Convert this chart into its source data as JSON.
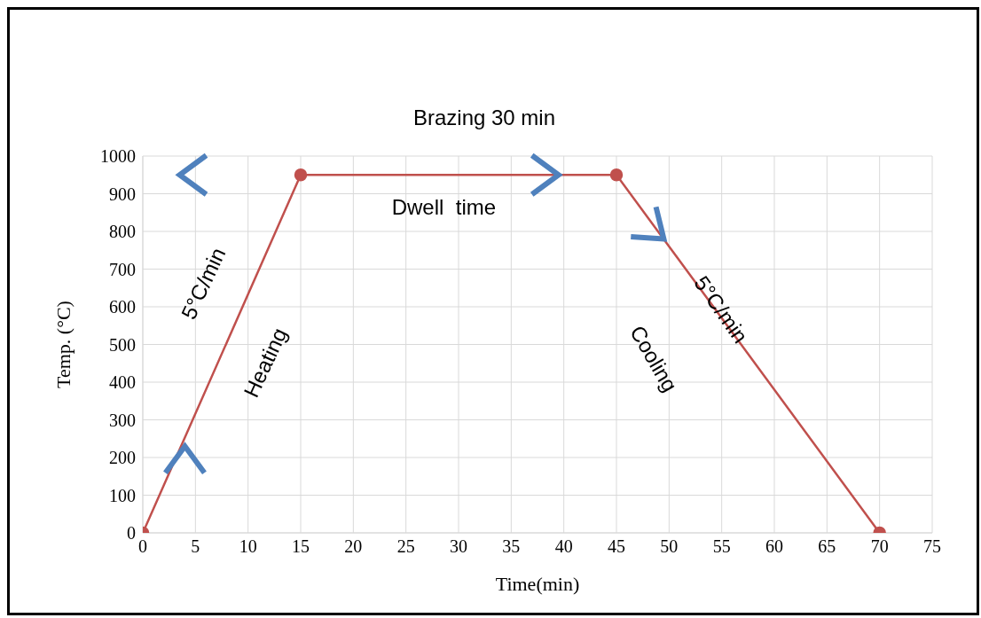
{
  "chart_data": {
    "type": "line",
    "title": "Brazing 30 min",
    "xlabel": "Time(min)",
    "ylabel": "Temp. (°C)",
    "x": [
      0,
      15,
      45,
      70
    ],
    "series": [
      {
        "color": "#c0504d",
        "values": [
          0,
          950,
          950,
          0
        ]
      }
    ],
    "xlim": [
      0,
      75
    ],
    "xticks": [
      0,
      5,
      10,
      15,
      20,
      25,
      30,
      35,
      40,
      45,
      50,
      55,
      60,
      65,
      70,
      75
    ],
    "ylim": [
      0,
      1000
    ],
    "yticks": [
      0,
      100,
      200,
      300,
      400,
      500,
      600,
      700,
      800,
      900,
      1000
    ],
    "grid": true,
    "marker": "circle",
    "line_style": "solid",
    "legend": false,
    "annotations": [
      "5°C/min",
      "Heating",
      "Dwell  time",
      "Cooling",
      "5°C/min"
    ]
  }
}
